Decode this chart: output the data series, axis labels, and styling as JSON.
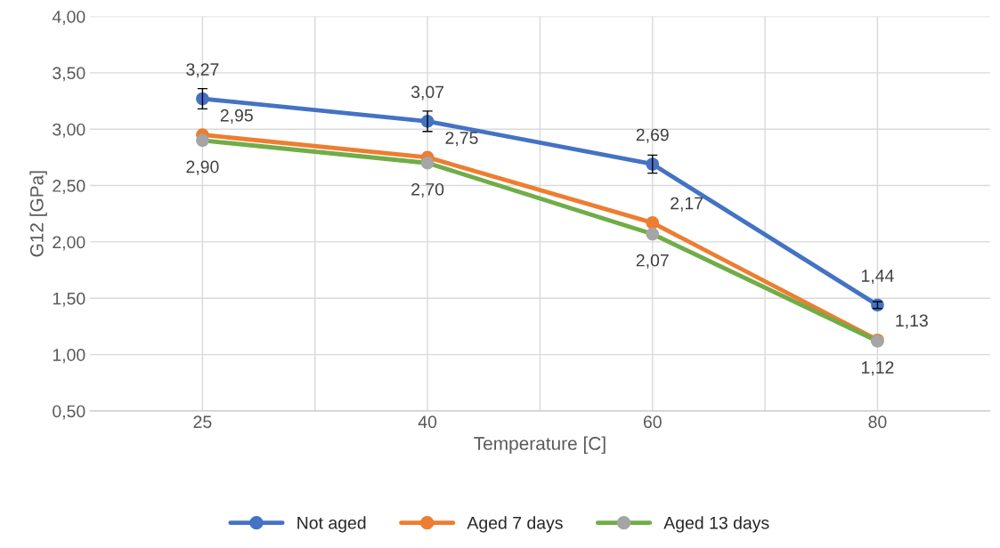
{
  "chart_data": {
    "type": "line",
    "xlabel": "Temperature [C]",
    "ylabel": "G12 [GPa]",
    "categories": [
      "25",
      "40",
      "60",
      "80"
    ],
    "series": [
      {
        "name": "Not aged",
        "color": "#4472c4",
        "values": [
          3.27,
          3.07,
          2.69,
          1.44
        ],
        "errors": [
          0.09,
          0.09,
          0.08,
          0.03
        ],
        "value_labels": [
          "3,27",
          "3,07",
          "2,69",
          "1,44"
        ]
      },
      {
        "name": "Aged 7 days",
        "color": "#ed7d31",
        "values": [
          2.95,
          2.75,
          2.17,
          1.13
        ],
        "value_labels": [
          "2,95",
          "2,75",
          "2,17",
          "1,13"
        ]
      },
      {
        "name": "Aged 13 days",
        "color": "#70ad47",
        "colors": [
          "#a5a5a5",
          "#a5a5a5",
          "#a5a5a5",
          "#a5a5a5"
        ],
        "values": [
          2.9,
          2.7,
          2.07,
          1.12
        ],
        "value_labels": [
          "2,90",
          "2,70",
          "2,07",
          "1,12"
        ]
      }
    ],
    "ylim": [
      0.5,
      4.0
    ],
    "yticks": [
      {
        "value": 0.5,
        "label": "0,50"
      },
      {
        "value": 1.0,
        "label": "1,00"
      },
      {
        "value": 1.5,
        "label": "1,50"
      },
      {
        "value": 2.0,
        "label": "2,00"
      },
      {
        "value": 2.5,
        "label": "2,50"
      },
      {
        "value": 3.0,
        "label": "3,00"
      },
      {
        "value": 3.5,
        "label": "3,50"
      },
      {
        "value": 4.0,
        "label": "4,00"
      }
    ],
    "grid": true,
    "legend": "bottom",
    "marker": "circle",
    "line_style": "solid"
  }
}
